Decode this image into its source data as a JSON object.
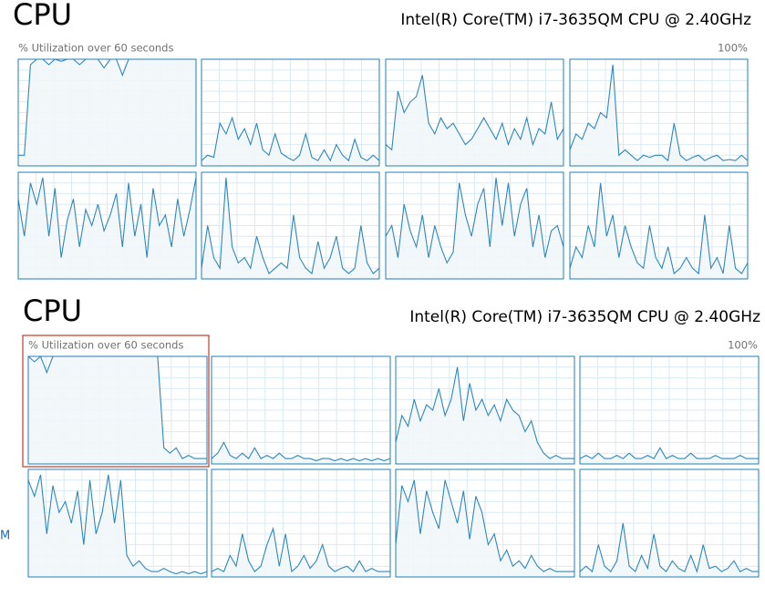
{
  "panels": [
    {
      "title": "CPU",
      "cpu_name": "Intel(R) Core(TM) i7-3635QM CPU @ 2.40GHz",
      "subtitle": "% Utilization over 60 seconds",
      "max_label": "100%",
      "ylim": [
        0,
        100
      ],
      "graphs": [
        {
          "values": [
            10,
            10,
            95,
            100,
            100,
            95,
            100,
            98,
            100,
            100,
            95,
            100,
            100,
            100,
            92,
            100,
            100,
            85,
            100,
            100,
            100,
            100,
            100,
            100,
            100,
            100,
            100,
            100,
            100,
            100
          ]
        },
        {
          "values": [
            5,
            10,
            8,
            40,
            30,
            45,
            25,
            35,
            20,
            40,
            15,
            10,
            30,
            12,
            8,
            5,
            10,
            30,
            8,
            5,
            15,
            5,
            20,
            10,
            5,
            25,
            8,
            5,
            10,
            5
          ]
        },
        {
          "values": [
            20,
            15,
            70,
            50,
            60,
            65,
            85,
            40,
            30,
            45,
            35,
            40,
            30,
            20,
            25,
            35,
            45,
            35,
            25,
            40,
            20,
            35,
            25,
            45,
            20,
            35,
            30,
            60,
            25,
            35
          ]
        },
        {
          "values": [
            15,
            30,
            25,
            40,
            35,
            50,
            45,
            95,
            10,
            15,
            10,
            5,
            10,
            8,
            10,
            10,
            5,
            40,
            10,
            5,
            8,
            10,
            5,
            8,
            10,
            5,
            6,
            5,
            10,
            5
          ]
        },
        {
          "values": [
            75,
            40,
            90,
            70,
            95,
            40,
            85,
            20,
            55,
            75,
            30,
            65,
            50,
            70,
            45,
            60,
            80,
            30,
            90,
            40,
            70,
            20,
            85,
            50,
            60,
            30,
            75,
            40,
            65,
            95
          ]
        },
        {
          "values": [
            10,
            50,
            20,
            10,
            95,
            30,
            15,
            20,
            10,
            40,
            20,
            5,
            10,
            15,
            10,
            60,
            20,
            10,
            5,
            35,
            10,
            20,
            40,
            10,
            5,
            10,
            50,
            15,
            5,
            10
          ]
        },
        {
          "values": [
            40,
            50,
            20,
            70,
            45,
            30,
            60,
            20,
            50,
            30,
            15,
            25,
            90,
            60,
            40,
            70,
            85,
            30,
            95,
            50,
            90,
            40,
            70,
            85,
            30,
            60,
            20,
            45,
            50,
            30
          ]
        },
        {
          "values": [
            10,
            30,
            20,
            50,
            30,
            90,
            40,
            60,
            20,
            50,
            30,
            15,
            10,
            50,
            20,
            10,
            30,
            5,
            10,
            20,
            10,
            5,
            60,
            10,
            20,
            5,
            50,
            10,
            5,
            15
          ]
        }
      ]
    },
    {
      "title": "CPU",
      "cpu_name": "Intel(R) Core(TM) i7-3635QM CPU @ 2.40GHz",
      "subtitle": "% Utilization over 60 seconds",
      "max_label": "100%",
      "ylim": [
        0,
        100
      ],
      "graphs": [
        {
          "values": [
            100,
            95,
            100,
            85,
            100,
            100,
            100,
            100,
            100,
            100,
            100,
            100,
            100,
            100,
            100,
            100,
            100,
            100,
            100,
            100,
            100,
            100,
            15,
            10,
            15,
            5,
            8,
            5,
            5,
            5
          ]
        },
        {
          "values": [
            5,
            10,
            20,
            8,
            5,
            10,
            5,
            15,
            5,
            8,
            5,
            10,
            5,
            5,
            8,
            5,
            5,
            3,
            5,
            5,
            3,
            5,
            3,
            5,
            3,
            5,
            3,
            5,
            3,
            5
          ]
        },
        {
          "values": [
            20,
            45,
            35,
            60,
            40,
            55,
            50,
            70,
            45,
            60,
            90,
            40,
            75,
            50,
            60,
            45,
            55,
            40,
            60,
            50,
            45,
            30,
            40,
            20,
            10,
            5,
            8,
            5,
            5,
            5
          ]
        },
        {
          "values": [
            5,
            8,
            5,
            10,
            5,
            5,
            8,
            5,
            10,
            5,
            5,
            8,
            5,
            15,
            5,
            8,
            5,
            5,
            10,
            5,
            5,
            5,
            8,
            5,
            5,
            5,
            8,
            5,
            5,
            5
          ]
        },
        {
          "values": [
            90,
            75,
            95,
            40,
            85,
            60,
            70,
            50,
            80,
            30,
            90,
            40,
            60,
            95,
            50,
            90,
            20,
            10,
            15,
            8,
            5,
            5,
            8,
            5,
            3,
            5,
            3,
            5,
            3,
            5
          ]
        },
        {
          "values": [
            5,
            8,
            5,
            20,
            10,
            40,
            15,
            5,
            10,
            30,
            45,
            10,
            40,
            5,
            10,
            20,
            8,
            15,
            30,
            10,
            5,
            8,
            10,
            5,
            15,
            5,
            8,
            5,
            5,
            5
          ]
        },
        {
          "values": [
            30,
            85,
            70,
            90,
            40,
            80,
            60,
            45,
            90,
            70,
            50,
            80,
            35,
            75,
            60,
            30,
            40,
            15,
            25,
            10,
            15,
            8,
            20,
            10,
            5,
            8,
            5,
            5,
            5,
            5
          ]
        },
        {
          "values": [
            5,
            10,
            5,
            30,
            10,
            5,
            15,
            50,
            10,
            5,
            20,
            8,
            40,
            10,
            5,
            15,
            8,
            5,
            20,
            5,
            30,
            8,
            10,
            5,
            8,
            15,
            5,
            8,
            5,
            5
          ]
        }
      ]
    }
  ],
  "side_text": "M"
}
